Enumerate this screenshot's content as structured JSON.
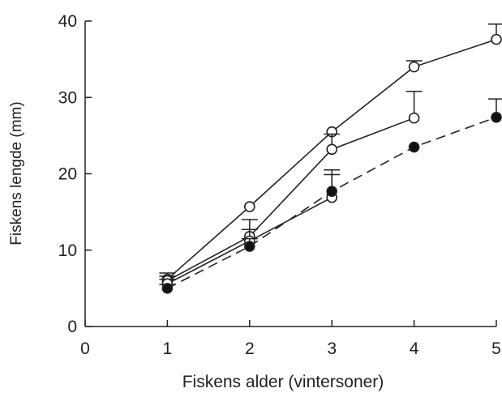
{
  "chart_data": {
    "type": "line",
    "title": "",
    "xlabel": "Fiskens alder (vintersoner)",
    "ylabel": "Fiskens lengde (mm)",
    "xlim": [
      0,
      5
    ],
    "ylim": [
      0,
      40
    ],
    "xticks": [
      "0",
      "1",
      "2",
      "3",
      "4",
      "5"
    ],
    "yticks": [
      "0",
      "10",
      "20",
      "30",
      "40"
    ],
    "grid": false,
    "legend": "none",
    "series": [
      {
        "style": "solid",
        "marker": "open-circle",
        "x": [
          1,
          2,
          3,
          4,
          5
        ],
        "y": [
          6.2,
          15.7,
          25.5,
          34.0,
          37.6
        ],
        "err": [
          0.8,
          0,
          0,
          0.8,
          2.0
        ]
      },
      {
        "style": "solid",
        "marker": "open-circle",
        "x": [
          1,
          2,
          3,
          4
        ],
        "y": [
          6.0,
          11.8,
          23.2,
          27.3
        ],
        "err": [
          0.6,
          2.2,
          2.0,
          3.5
        ]
      },
      {
        "style": "solid",
        "marker": "open-circle",
        "x": [
          1,
          2,
          3
        ],
        "y": [
          5.6,
          11.2,
          16.9
        ],
        "err": [
          0.6,
          1.5,
          3.6
        ]
      },
      {
        "style": "dashed",
        "marker": "filled-circle",
        "x": [
          1,
          2,
          3,
          4,
          5
        ],
        "y": [
          5.0,
          10.5,
          17.7,
          23.5,
          27.4
        ],
        "err": [
          0.5,
          1.0,
          2.2,
          0,
          2.4
        ]
      }
    ]
  }
}
